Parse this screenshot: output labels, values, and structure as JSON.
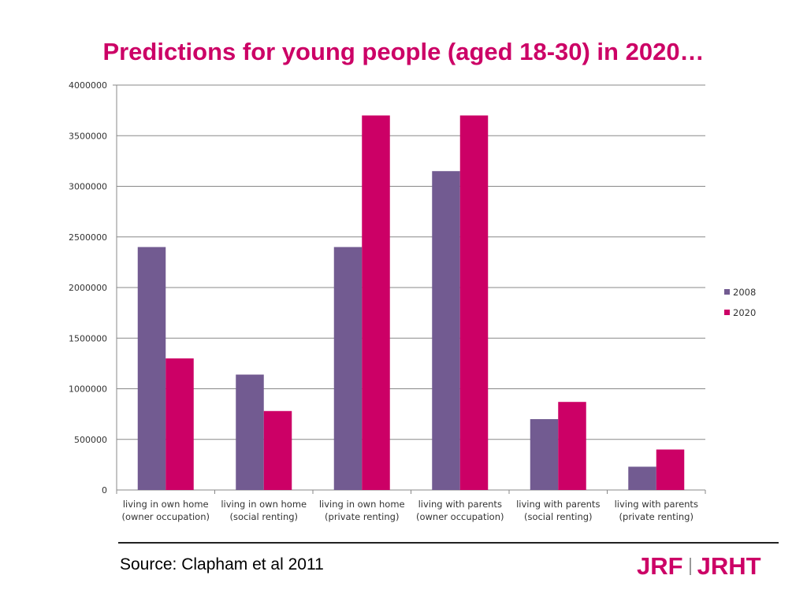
{
  "title": "Predictions for young people (aged 18-30) in 2020…",
  "source": "Source: Clapham et al 2011",
  "logo": {
    "left": "JRF",
    "right": "JRHT"
  },
  "colors": {
    "title": "#cc0066",
    "series_2008": "#725b91",
    "series_2020": "#cc0066",
    "grid": "#888888"
  },
  "chart_data": {
    "type": "bar",
    "title": "",
    "xlabel": "",
    "ylabel": "",
    "ylim": [
      0,
      4000000
    ],
    "yticks": [
      "0",
      "500000",
      "1000000",
      "1500000",
      "2000000",
      "2500000",
      "3000000",
      "3500000",
      "4000000"
    ],
    "ytick_values": [
      0,
      500000,
      1000000,
      1500000,
      2000000,
      2500000,
      3000000,
      3500000,
      4000000
    ],
    "grid": true,
    "legend": "right",
    "categories": [
      [
        "living in own home",
        "(owner occupation)"
      ],
      [
        "living in own home",
        "(social renting)"
      ],
      [
        "living in own home",
        "(private renting)"
      ],
      [
        "living with parents",
        "(owner occupation)"
      ],
      [
        "living with parents",
        "(social renting)"
      ],
      [
        "living with parents",
        "(private renting)"
      ]
    ],
    "series": [
      {
        "name": "2008",
        "color": "#725b91",
        "values": [
          2400000,
          1140000,
          2400000,
          3150000,
          700000,
          230000
        ]
      },
      {
        "name": "2020",
        "color": "#cc0066",
        "values": [
          1300000,
          780000,
          3700000,
          3700000,
          870000,
          400000
        ]
      }
    ]
  }
}
